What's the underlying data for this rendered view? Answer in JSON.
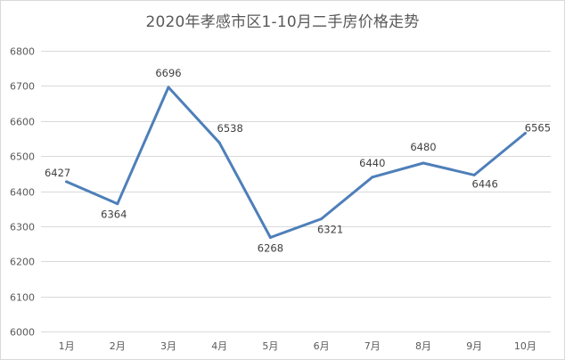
{
  "chart_data": {
    "type": "line",
    "title": "2020年孝感市区1-10月二手房价格走势",
    "categories": [
      "1月",
      "2月",
      "3月",
      "4月",
      "5月",
      "6月",
      "7月",
      "8月",
      "9月",
      "10月"
    ],
    "series": [
      {
        "values": [
          6427,
          6364,
          6696,
          6538,
          6268,
          6321,
          6440,
          6480,
          6446,
          6565
        ],
        "color": "#4e7fb9"
      }
    ],
    "ylim": [
      6000,
      6800
    ],
    "y_ticks": [
      6000,
      6100,
      6200,
      6300,
      6400,
      6500,
      6600,
      6700,
      6800
    ],
    "grid": true,
    "legend": "none",
    "data_labels": true
  }
}
